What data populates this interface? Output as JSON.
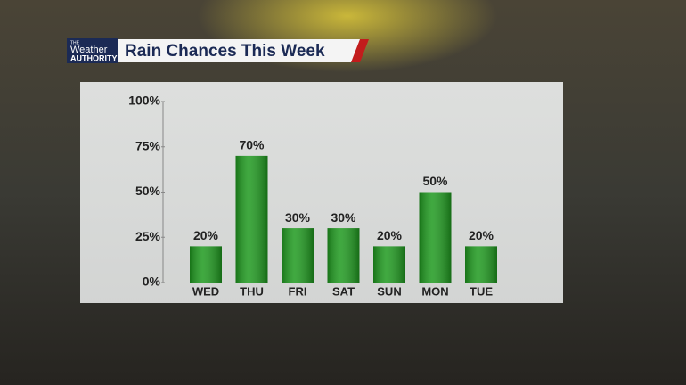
{
  "branding": {
    "lines": [
      "THE",
      "Weather",
      "AUTHORITY"
    ]
  },
  "chart_data": {
    "type": "bar",
    "title": "Rain Chances This Week",
    "categories": [
      "WED",
      "THU",
      "FRI",
      "SAT",
      "SUN",
      "MON",
      "TUE"
    ],
    "values": [
      20,
      70,
      30,
      30,
      20,
      50,
      20
    ],
    "value_labels": [
      "20%",
      "70%",
      "30%",
      "30%",
      "20%",
      "50%",
      "20%"
    ],
    "color": "#1f9a1f",
    "ylim": [
      0,
      100
    ],
    "yticks": [
      {
        "value": 0,
        "label": "0%"
      },
      {
        "value": 25,
        "label": "25%"
      },
      {
        "value": 50,
        "label": "50%"
      },
      {
        "value": 75,
        "label": "75%"
      },
      {
        "value": 100,
        "label": "100%"
      }
    ],
    "grid": false
  }
}
